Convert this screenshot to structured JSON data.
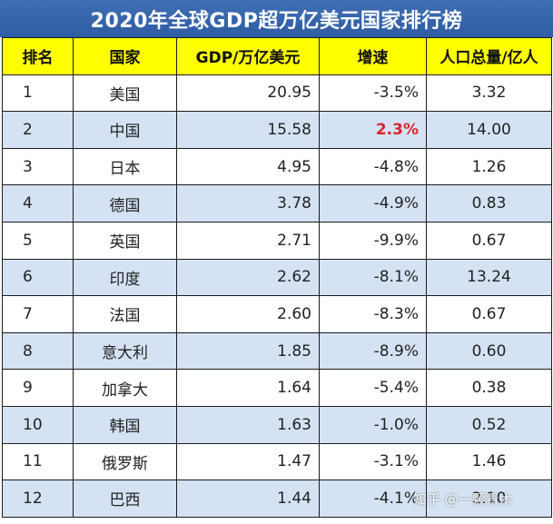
{
  "title": "2020年全球GDP超万亿美元国家排行榜",
  "headers": [
    "排名",
    "国家",
    "GDP/万亿美元",
    "增速",
    "人口总量/亿人"
  ],
  "rows": [
    {
      "rank": "1",
      "country": "美国",
      "gdp": "20.95",
      "growth": "-3.5%",
      "pop": "3.32"
    },
    {
      "rank": "2",
      "country": "中国",
      "gdp": "15.58",
      "growth": "2.3%",
      "pop": "14.00"
    },
    {
      "rank": "3",
      "country": "日本",
      "gdp": "4.95",
      "growth": "-4.8%",
      "pop": "1.26"
    },
    {
      "rank": "4",
      "country": "德国",
      "gdp": "3.78",
      "growth": "-4.9%",
      "pop": "0.83"
    },
    {
      "rank": "5",
      "country": "英国",
      "gdp": "2.71",
      "growth": "-9.9%",
      "pop": "0.67"
    },
    {
      "rank": "6",
      "country": "印度",
      "gdp": "2.62",
      "growth": "-8.1%",
      "pop": "13.24"
    },
    {
      "rank": "7",
      "country": "法国",
      "gdp": "2.60",
      "growth": "-8.3%",
      "pop": "0.67"
    },
    {
      "rank": "8",
      "country": "意大利",
      "gdp": "1.85",
      "growth": "-8.9%",
      "pop": "0.60"
    },
    {
      "rank": "9",
      "country": "加拿大",
      "gdp": "1.64",
      "growth": "-5.4%",
      "pop": "0.38"
    },
    {
      "rank": "10",
      "country": "韩国",
      "gdp": "1.63",
      "growth": "-1.0%",
      "pop": "0.52"
    },
    {
      "rank": "11",
      "country": "俄罗斯",
      "gdp": "1.47",
      "growth": "-3.1%",
      "pop": "1.46"
    },
    {
      "rank": "12",
      "country": "巴西",
      "gdp": "1.44",
      "growth": "-4.1%",
      "pop": "2.10"
    }
  ],
  "colors": {
    "title_bg": "#2f5ca3",
    "header_bg": "#ffff00",
    "stripe_bg": "#d5e2f4",
    "positive": "#d8262c"
  },
  "watermark": "知乎 @一颗青木"
}
